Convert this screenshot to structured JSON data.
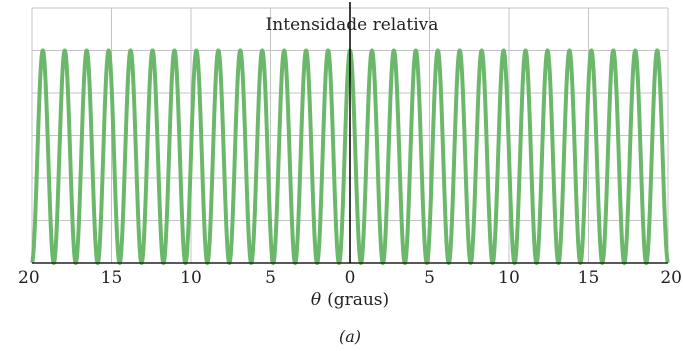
{
  "chart_data": {
    "type": "line",
    "title": "Intensidade relativa",
    "xlabel_symbol": "θ",
    "xlabel_unit": "(graus)",
    "caption": "(a)",
    "x_tick_labels": [
      "20",
      "15",
      "10",
      "5",
      "0",
      "5",
      "10",
      "15",
      "20"
    ],
    "x_tick_values": [
      -20,
      -15,
      -10,
      -5,
      0,
      5,
      10,
      15,
      20
    ],
    "xlim": [
      -20,
      20
    ],
    "ylim": [
      0,
      1.2
    ],
    "series": [
      {
        "formula": "cos^2",
        "amplitude": 1,
        "fringe_spacing_deg": 1.38,
        "x": [
          -20,
          -18.62,
          -17.24,
          -15.86,
          -14.48,
          -13.1,
          -11.72,
          -10.34,
          -8.96,
          -7.58,
          -6.2,
          -4.82,
          -3.44,
          -2.06,
          -0.68,
          0,
          0.68,
          2.06,
          3.44,
          4.82,
          6.2,
          7.58,
          8.96,
          10.34,
          11.72,
          13.1,
          14.48,
          15.86,
          17.24,
          18.62,
          20
        ],
        "peaks_note": "maxima at multiples of fringe spacing"
      }
    ],
    "grid": true,
    "colors": {
      "line": "#6cb86a",
      "grid": "#c4c4c4",
      "axis": "#222222",
      "center_line": "#000000"
    }
  }
}
